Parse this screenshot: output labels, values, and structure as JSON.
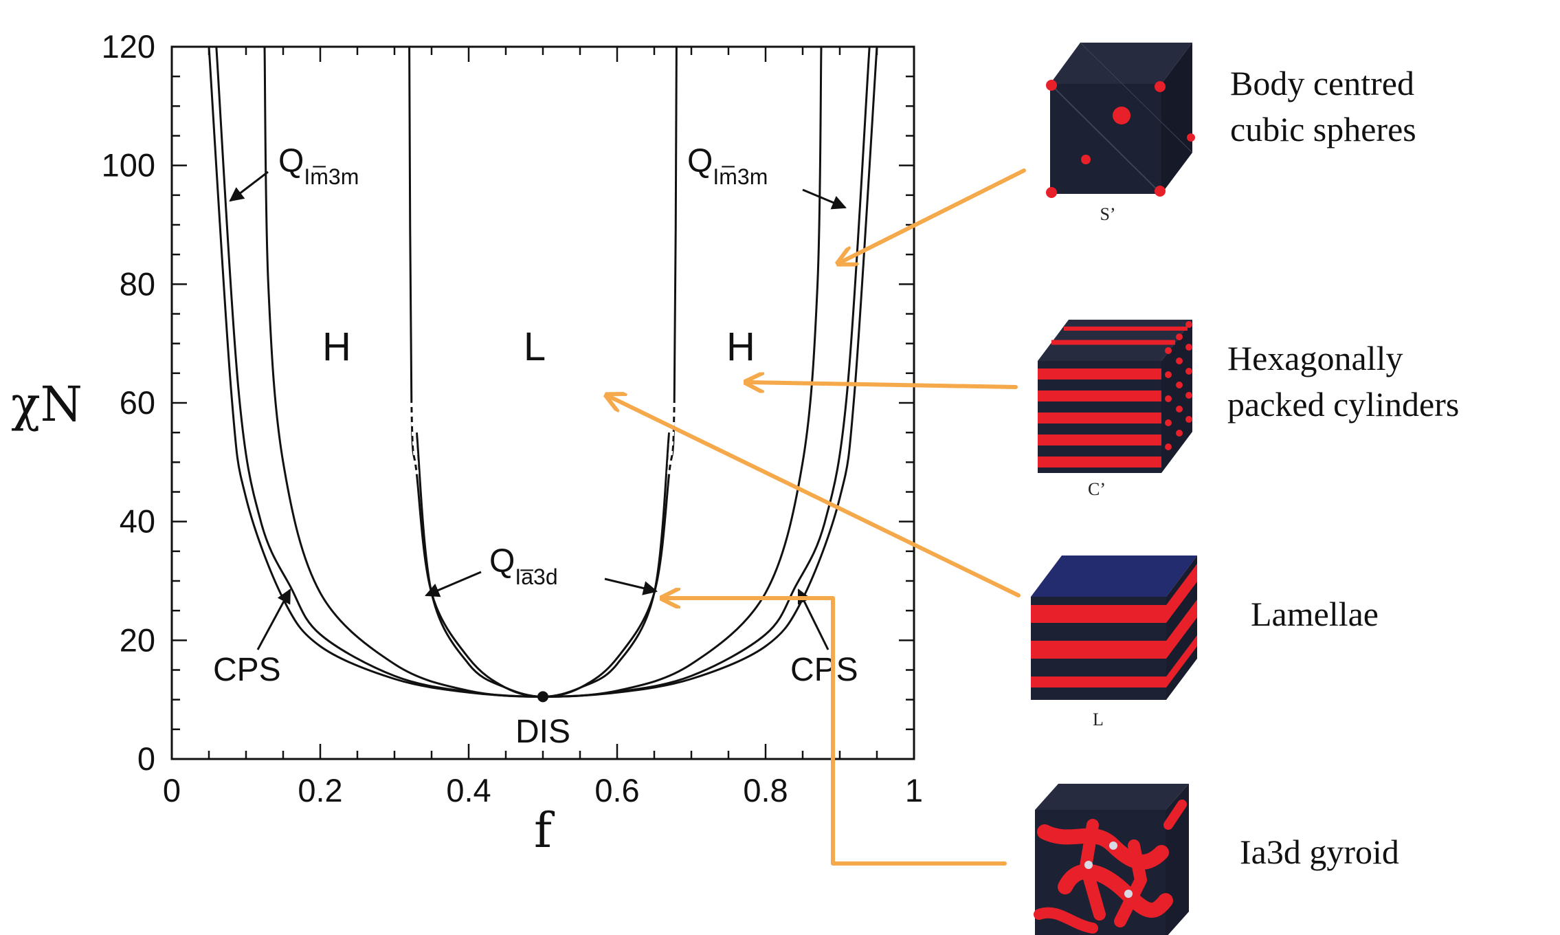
{
  "chart_data": {
    "type": "line",
    "title": "",
    "xlabel": "f",
    "ylabel": "χN",
    "xlim": [
      0,
      1
    ],
    "ylim": [
      0,
      120
    ],
    "x_ticks": [
      "0",
      "0.2",
      "0.4",
      "0.6",
      "0.8",
      "1"
    ],
    "y_ticks": [
      "0",
      "20",
      "40",
      "60",
      "80",
      "100",
      "120"
    ],
    "grid": false,
    "series": [
      {
        "x": [
          0.05,
          0.08,
          0.1,
          0.15,
          0.2,
          0.3,
          0.4,
          0.5,
          0.6,
          0.7,
          0.8,
          0.85,
          0.9,
          0.92,
          0.95
        ],
        "y": [
          120,
          62,
          44,
          27,
          19,
          13.5,
          11.2,
          10.5,
          11.2,
          13.5,
          19,
          27,
          44,
          62,
          120
        ]
      },
      {
        "x": [
          0.06,
          0.09,
          0.12,
          0.16,
          0.2,
          0.3,
          0.4,
          0.5,
          0.6,
          0.7,
          0.8,
          0.84,
          0.88,
          0.91,
          0.94
        ],
        "y": [
          120,
          62,
          40,
          29,
          21,
          14,
          11.3,
          10.5,
          11.3,
          14,
          21,
          29,
          40,
          62,
          120
        ]
      },
      {
        "x": [
          0.125,
          0.13,
          0.15,
          0.2,
          0.3,
          0.4,
          0.5,
          0.6,
          0.7,
          0.8,
          0.85,
          0.87,
          0.875
        ],
        "y": [
          120,
          80,
          50,
          28,
          16,
          11.5,
          10.5,
          11.5,
          16,
          28,
          50,
          80,
          120
        ]
      },
      {
        "x": [
          0.32,
          0.323,
          0.33,
          0.35,
          0.4,
          0.45,
          0.5,
          0.55,
          0.6,
          0.65,
          0.67,
          0.677,
          0.68
        ],
        "y": [
          120,
          60,
          48,
          28,
          17,
          12,
          10.5,
          12,
          17,
          28,
          48,
          60,
          120
        ]
      },
      {
        "x": [
          0.33,
          0.35,
          0.4,
          0.45,
          0.5,
          0.55,
          0.6,
          0.65,
          0.67
        ],
        "y": [
          55,
          28,
          16,
          12,
          10.5,
          12,
          16,
          28,
          55
        ]
      }
    ],
    "region_labels": [
      "H",
      "L",
      "H"
    ],
    "annotations": [
      {
        "text": "Q",
        "sub": "Im̅3m"
      },
      {
        "text": "Q",
        "sub": "Im̅3m"
      },
      {
        "text": "Q",
        "sub": "Ia̅3d"
      },
      {
        "text": "CPS"
      },
      {
        "text": "CPS"
      },
      {
        "text": "DIS"
      }
    ],
    "critical_point": {
      "x": 0.5,
      "y": 10.5
    }
  },
  "panels": [
    {
      "caption": "S’",
      "line1": "Body centred",
      "line2": "cubic spheres"
    },
    {
      "caption": "C’",
      "line1": "Hexagonally",
      "line2": "packed cylinders"
    },
    {
      "caption": "L",
      "line1": "Lamellae",
      "line2": ""
    },
    {
      "caption": "",
      "line1": "Ia3d gyroid",
      "line2": ""
    }
  ],
  "colors": {
    "arrow": "#f5a94a",
    "cube_dark": "#1c2133",
    "cube_red": "#e8202a",
    "cube_blue_top": "#232c6e"
  }
}
